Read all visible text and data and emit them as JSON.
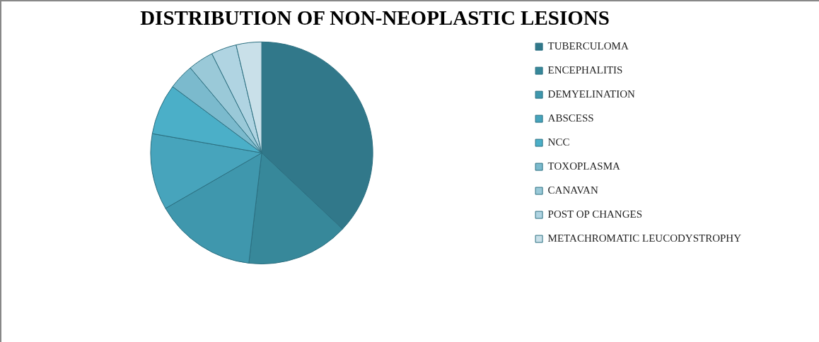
{
  "chart_data": {
    "type": "pie",
    "title": "DISTRIBUTION OF NON-NEOPLASTIC LESIONS",
    "categories": [
      "TUBERCULOMA",
      "ENCEPHALITIS",
      "DEMYELINATION",
      "ABSCESS",
      "NCC",
      "TOXOPLASMA",
      "CANAVAN",
      "POST OP CHANGES",
      "METACHROMATIC LEUCODYSTROPHY"
    ],
    "values": [
      37,
      14.8,
      14.8,
      11.1,
      7.4,
      3.7,
      3.7,
      3.7,
      3.7
    ],
    "colors": [
      "#31788a",
      "#37889a",
      "#3f97ad",
      "#47a4bc",
      "#4bafc8",
      "#7bbacd",
      "#9ac9d8",
      "#b0d4e2",
      "#c9e0e9"
    ],
    "legend": "right"
  }
}
